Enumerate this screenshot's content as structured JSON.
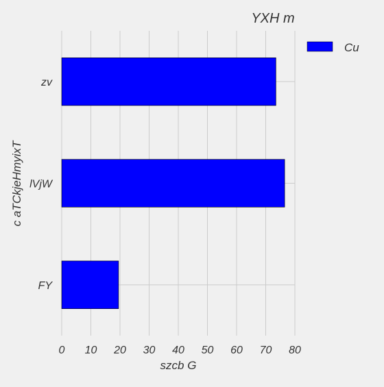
{
  "chart_data": {
    "type": "bar",
    "orientation": "horizontal",
    "title": "YXH m",
    "xlabel": "szcb G",
    "ylabel": "c aTCkjeHmyixT",
    "categories": [
      "FY",
      "lVjW",
      "zv"
    ],
    "series": [
      {
        "name": "Cu",
        "values": [
          19.5,
          76.5,
          73.5
        ],
        "color": "#0000ff"
      }
    ],
    "xlim": [
      0,
      80
    ],
    "xticks": [
      "0",
      "10",
      "20",
      "30",
      "40",
      "50",
      "60",
      "70",
      "80"
    ],
    "grid": true,
    "legend_position": "top-right"
  },
  "colors": {
    "background": "#f0f0f0",
    "grid": "#cbcbcb",
    "bar": "#0000ff",
    "text": "#333333"
  }
}
